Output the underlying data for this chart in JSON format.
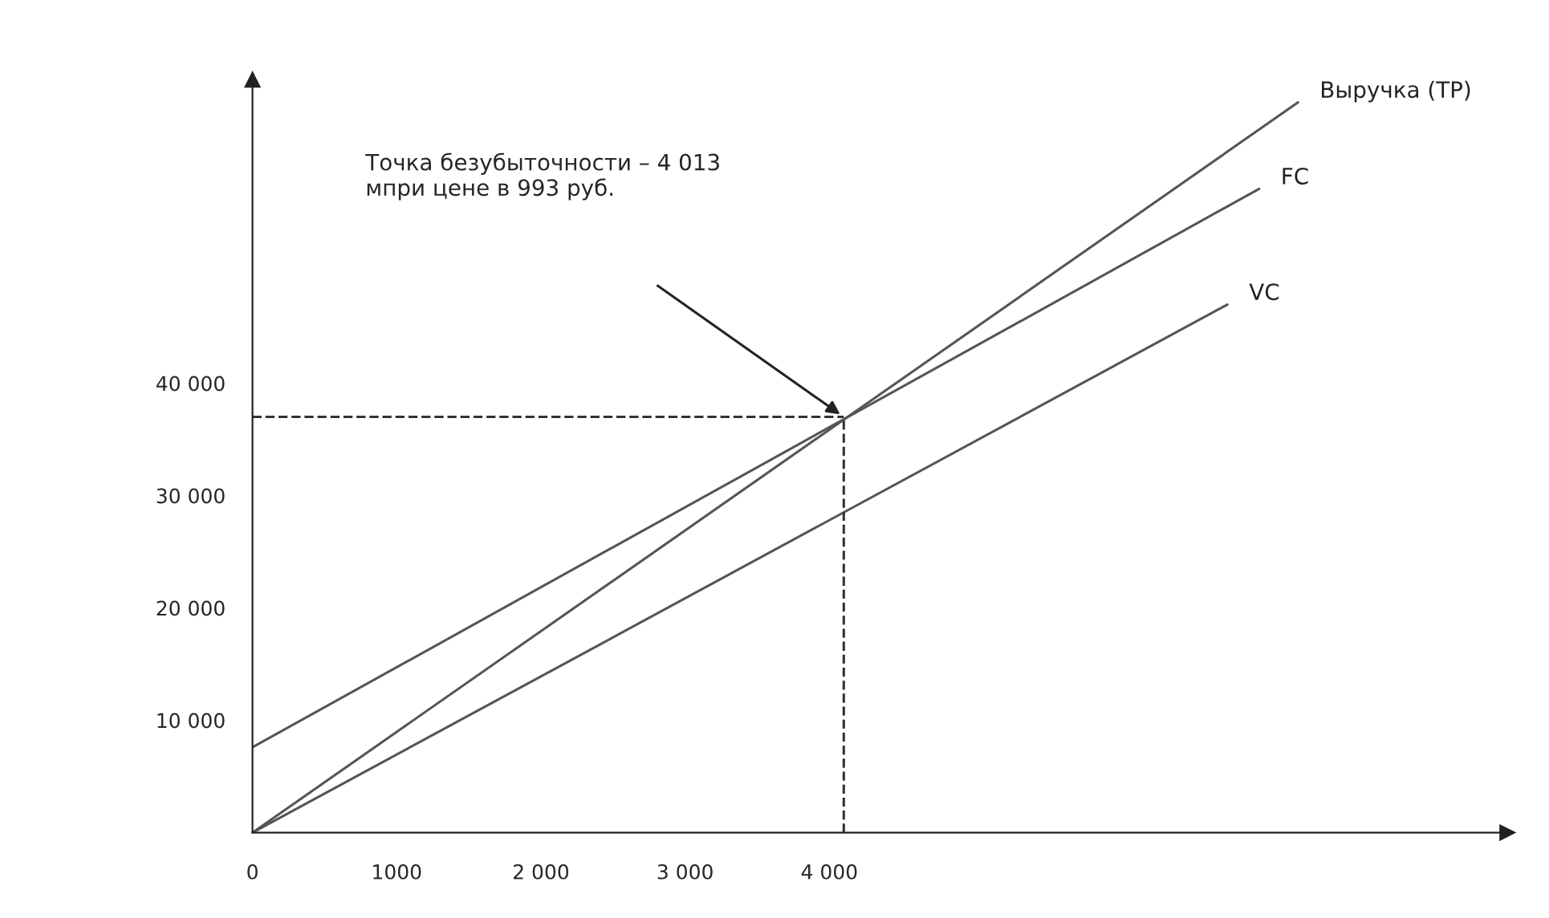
{
  "chart_data": {
    "type": "line",
    "series": [
      {
        "name": "Выручка (TP)",
        "color": "#555555",
        "x": [
          0,
          7250
        ],
        "values": [
          0,
          65000
        ]
      },
      {
        "name": "FC",
        "color": "#555555",
        "x": [
          0,
          6980
        ],
        "values": [
          7600,
          57300
        ]
      },
      {
        "name": "VC",
        "color": "#555555",
        "x": [
          0,
          6760
        ],
        "values": [
          0,
          47000
        ]
      },
      {
        "color": "#333333",
        "x": [
          0,
          4100
        ],
        "values": [
          37000,
          37000
        ],
        "line_style": "dashed"
      },
      {
        "color": "#333333",
        "x": [
          4100,
          4100
        ],
        "values": [
          0,
          37000
        ],
        "line_style": "dashed"
      }
    ],
    "annotations": [
      "Точка безубыточности – 4 013\nмпри цене в 993 руб."
    ],
    "xlim": [
      0,
      8700
    ],
    "ylim": [
      0,
      67000
    ],
    "xticks": [
      0,
      {
        "value": 1000,
        "label": "1000"
      },
      {
        "value": 2000,
        "label": "2 000"
      },
      {
        "value": 3000,
        "label": "3 000"
      },
      {
        "value": 4000,
        "label": "4 000"
      }
    ],
    "yticks": [
      {
        "value": 10000,
        "label": "10 000"
      },
      {
        "value": 20000,
        "label": "20 000"
      },
      {
        "value": 30000,
        "label": "30 000"
      },
      {
        "value": 40000,
        "label": "40 000"
      }
    ],
    "grid": false,
    "legend": false,
    "line_style": "solid"
  }
}
